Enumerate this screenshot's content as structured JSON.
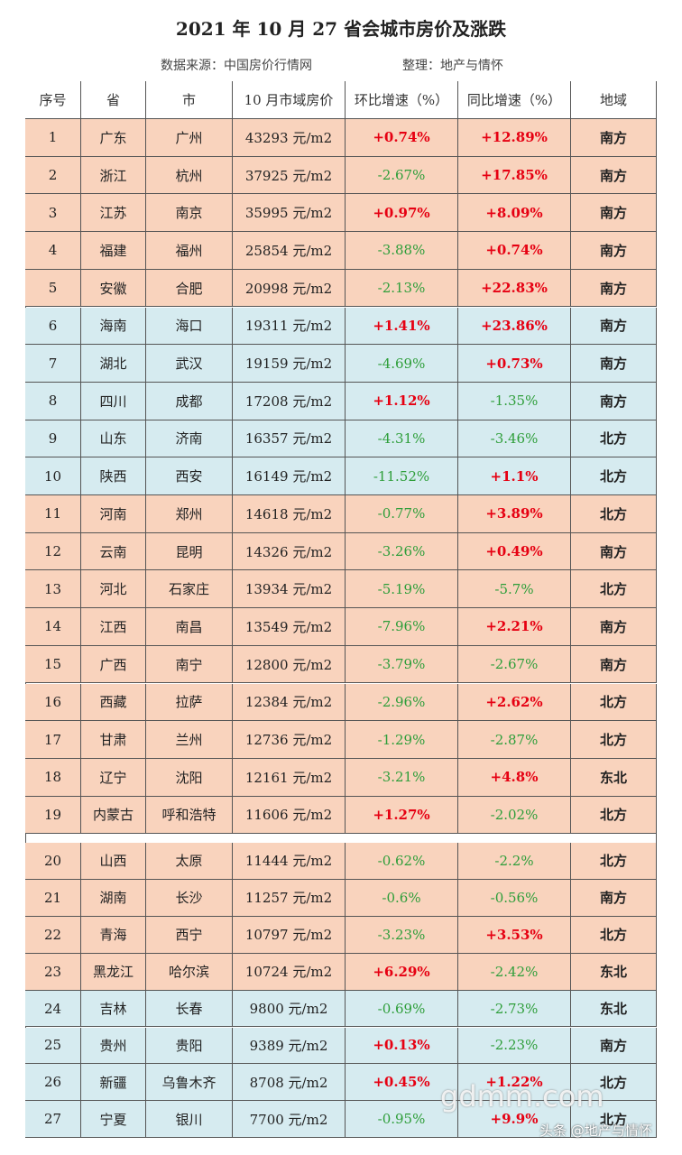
{
  "title": "2021 年 10 月 27 省会城市房价及涨跌",
  "source": {
    "from": "数据来源：中国房价行情网",
    "editor": "整理：地产与情怀"
  },
  "table": {
    "header": [
      "序号",
      "省",
      "市",
      "10 月市域房价",
      "环比增速（%）",
      "同比增速（%）",
      "地域"
    ],
    "rows": [
      [
        "1",
        "广东",
        "广州",
        "43293 元/m2",
        "+0.74%",
        "+12.89%",
        "南方"
      ],
      [
        "2",
        "浙江",
        "杭州",
        "37925 元/m2",
        "-2.67%",
        "+17.85%",
        "南方"
      ],
      [
        "3",
        "江苏",
        "南京",
        "35995 元/m2",
        "+0.97%",
        "+8.09%",
        "南方"
      ],
      [
        "4",
        "福建",
        "福州",
        "25854 元/m2",
        "-3.88%",
        "+0.74%",
        "南方"
      ],
      [
        "5",
        "安徽",
        "合肥",
        "20998 元/m2",
        "-2.13%",
        "+22.83%",
        "南方"
      ],
      [
        "6",
        "海南",
        "海口",
        "19311 元/m2",
        "+1.41%",
        "+23.86%",
        "南方"
      ],
      [
        "7",
        "湖北",
        "武汉",
        "19159 元/m2",
        "-4.69%",
        "+0.73%",
        "南方"
      ],
      [
        "8",
        "四川",
        "成都",
        "17208 元/m2",
        "+1.12%",
        "-1.35%",
        "南方"
      ],
      [
        "9",
        "山东",
        "济南",
        "16357 元/m2",
        "-4.31%",
        "-3.46%",
        "北方"
      ],
      [
        "10",
        "陕西",
        "西安",
        "16149 元/m2",
        "-11.52%",
        "+1.1%",
        "北方"
      ],
      [
        "11",
        "河南",
        "郑州",
        "14618 元/m2",
        "-0.77%",
        "+3.89%",
        "北方"
      ],
      [
        "12",
        "云南",
        "昆明",
        "14326 元/m2",
        "-3.26%",
        "+0.49%",
        "南方"
      ],
      [
        "13",
        "河北",
        "石家庄",
        "13934 元/m2",
        "-5.19%",
        "-5.7%",
        "北方"
      ],
      [
        "14",
        "江西",
        "南昌",
        "13549 元/m2",
        "-7.96%",
        "+2.21%",
        "南方"
      ],
      [
        "15",
        "广西",
        "南宁",
        "12800 元/m2",
        "-3.79%",
        "-2.67%",
        "南方"
      ],
      [
        "16",
        "西藏",
        "拉萨",
        "12384 元/m2",
        "-2.96%",
        "+2.62%",
        "北方"
      ],
      [
        "17",
        "甘肃",
        "兰州",
        "12736 元/m2",
        "-1.29%",
        "-2.87%",
        "北方"
      ],
      [
        "18",
        "辽宁",
        "沈阳",
        "12161 元/m2",
        "-3.21%",
        "+4.8%",
        "东北"
      ],
      [
        "19",
        "内蒙古",
        "呼和浩特",
        "11606 元/m2",
        "+1.27%",
        "-2.02%",
        "北方"
      ],
      [
        "20",
        "山西",
        "太原",
        "11444 元/m2",
        "-0.62%",
        "-2.2%",
        "北方"
      ],
      [
        "21",
        "湖南",
        "长沙",
        "11257 元/m2",
        "-0.6%",
        "-0.56%",
        "南方"
      ],
      [
        "22",
        "青海",
        "西宁",
        "10797 元/m2",
        "-3.23%",
        "+3.53%",
        "北方"
      ],
      [
        "23",
        "黑龙江",
        "哈尔滨",
        "10724 元/m2",
        "+6.29%",
        "-2.42%",
        "东北"
      ],
      [
        "24",
        "吉林",
        "长春",
        "9800 元/m2",
        "-0.69%",
        "-2.73%",
        "东北"
      ],
      [
        "25",
        "贵州",
        "贵阳",
        "9389 元/m2",
        "+0.13%",
        "-2.23%",
        "南方"
      ],
      [
        "26",
        "新疆",
        "乌鲁木齐",
        "8708 元/m2",
        "+0.45%",
        "+1.22%",
        "北方"
      ],
      [
        "27",
        "宁夏",
        "银川",
        "7700 元/m2",
        "-0.95%",
        "+9.9%",
        "北方"
      ]
    ]
  },
  "watermark": {
    "site": "gdmm.com",
    "credit": "头条 @地产与情怀"
  }
}
